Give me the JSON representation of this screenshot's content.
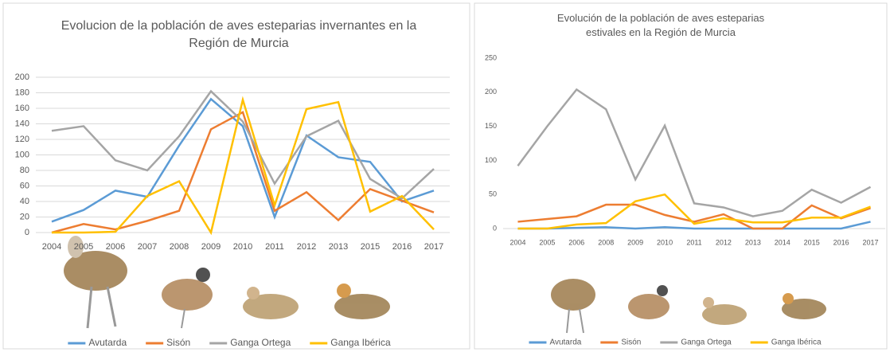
{
  "chart_data": [
    {
      "type": "line",
      "title": "Evolucion de la población de aves esteparias invernantes en la Región de Murcia",
      "categories": [
        "2004",
        "2005",
        "2006",
        "2007",
        "2008",
        "2009",
        "2010",
        "2011",
        "2012",
        "2013",
        "2015",
        "2016",
        "2017"
      ],
      "ylim": [
        0,
        200
      ],
      "yticks": [
        0,
        20,
        40,
        60,
        80,
        100,
        120,
        140,
        160,
        180,
        200
      ],
      "grid": true,
      "legend": "bottom",
      "series": [
        {
          "name": "Avutarda",
          "color": "#5b9bd5",
          "values": [
            14,
            29,
            54,
            46,
            112,
            172,
            137,
            20,
            125,
            97,
            91,
            40,
            54
          ]
        },
        {
          "name": "Sisón",
          "color": "#ed7d31",
          "values": [
            0,
            11,
            4,
            15,
            28,
            133,
            155,
            28,
            52,
            16,
            56,
            41,
            26
          ]
        },
        {
          "name": "Ganga Ortega",
          "color": "#a5a5a5",
          "values": [
            131,
            137,
            93,
            80,
            124,
            182,
            143,
            63,
            124,
            144,
            69,
            44,
            82
          ]
        },
        {
          "name": "Ganga Ibérica",
          "color": "#ffc000",
          "values": [
            0,
            0,
            1,
            47,
            66,
            0,
            171,
            35,
            159,
            168,
            27,
            47,
            4
          ]
        }
      ]
    },
    {
      "type": "line",
      "title": "Evolución de la población de aves esteparias estivales en la Región de Murcia",
      "categories": [
        "2004",
        "2005",
        "2006",
        "2008",
        "2009",
        "2010",
        "2011",
        "2012",
        "2013",
        "2014",
        "2015",
        "2016",
        "2017"
      ],
      "ylim": [
        0,
        250
      ],
      "yticks": [
        0,
        50,
        100,
        150,
        200,
        250
      ],
      "grid": false,
      "legend": "bottom",
      "series": [
        {
          "name": "Avutarda",
          "color": "#5b9bd5",
          "values": [
            0,
            0,
            1,
            2,
            0,
            2,
            0,
            0,
            0,
            0,
            0,
            0,
            10
          ]
        },
        {
          "name": "Sisón",
          "color": "#ed7d31",
          "values": [
            10,
            14,
            18,
            35,
            35,
            20,
            10,
            21,
            0,
            0,
            34,
            15,
            30
          ]
        },
        {
          "name": "Ganga Ortega",
          "color": "#a5a5a5",
          "values": [
            92,
            150,
            204,
            175,
            72,
            151,
            37,
            31,
            18,
            26,
            57,
            38,
            61
          ]
        },
        {
          "name": "Ganga Ibérica",
          "color": "#ffc000",
          "values": [
            0,
            0,
            6,
            8,
            40,
            50,
            7,
            15,
            9,
            9,
            16,
            16,
            32
          ]
        }
      ]
    }
  ]
}
